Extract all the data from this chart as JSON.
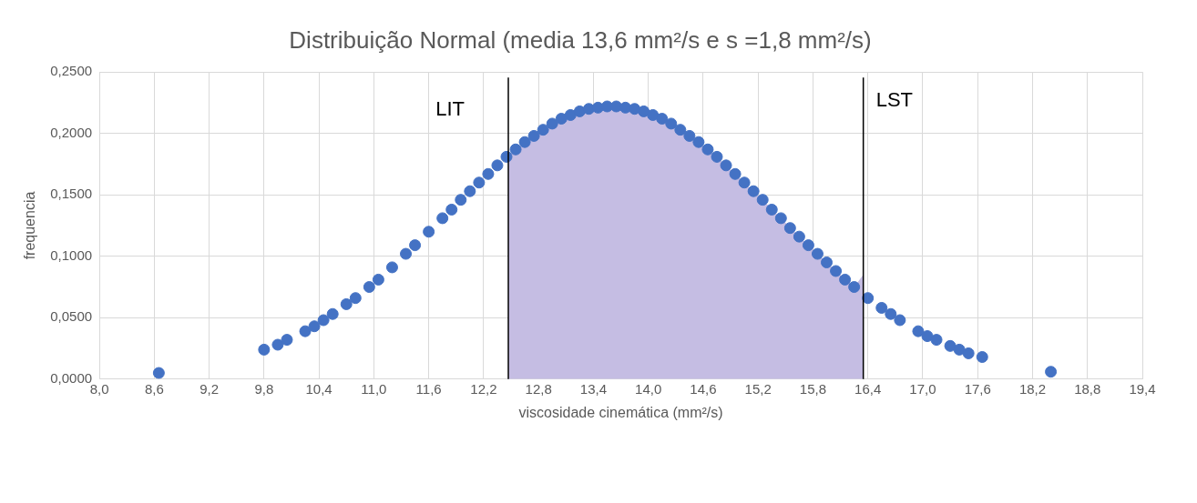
{
  "chart_data": {
    "type": "scatter",
    "title": "Distribuição Normal (media 13,6 mm²/s e s =1,8 mm²/s)",
    "xlabel": "viscosidade cinemática (mm²/s)",
    "ylabel": "frequencia",
    "xlim": [
      8.0,
      19.4
    ],
    "xticks": [
      {
        "value": 8.0,
        "label": "8,0"
      },
      {
        "value": 8.6,
        "label": "8,6"
      },
      {
        "value": 9.2,
        "label": "9,2"
      },
      {
        "value": 9.8,
        "label": "9,8"
      },
      {
        "value": 10.4,
        "label": "10,4"
      },
      {
        "value": 11.0,
        "label": "11,0"
      },
      {
        "value": 11.6,
        "label": "11,6"
      },
      {
        "value": 12.2,
        "label": "12,2"
      },
      {
        "value": 12.8,
        "label": "12,8"
      },
      {
        "value": 13.4,
        "label": "13,4"
      },
      {
        "value": 14.0,
        "label": "14,0"
      },
      {
        "value": 14.6,
        "label": "14,6"
      },
      {
        "value": 15.2,
        "label": "15,2"
      },
      {
        "value": 15.8,
        "label": "15,8"
      },
      {
        "value": 16.4,
        "label": "16,4"
      },
      {
        "value": 17.0,
        "label": "17,0"
      },
      {
        "value": 17.6,
        "label": "17,6"
      },
      {
        "value": 18.2,
        "label": "18,2"
      },
      {
        "value": 18.8,
        "label": "18,8"
      },
      {
        "value": 19.4,
        "label": "19,4"
      }
    ],
    "ylim": [
      0,
      0.25
    ],
    "yticks": [
      {
        "value": 0,
        "label": "0,0000"
      },
      {
        "value": 0.05,
        "label": "0,0500"
      },
      {
        "value": 0.1,
        "label": "0,1000"
      },
      {
        "value": 0.15,
        "label": "0,1500"
      },
      {
        "value": 0.2,
        "label": "0,2000"
      },
      {
        "value": 0.25,
        "label": "0,2500"
      }
    ],
    "grid": true,
    "legend": false,
    "marker": "circle",
    "series": [
      {
        "type": "area",
        "marker": "none",
        "color": "#c5bde3",
        "x": [
          12.47,
          12.65,
          12.85,
          13.05,
          13.25,
          13.45,
          13.65,
          13.85,
          14.05,
          14.25,
          14.45,
          14.65,
          14.85,
          15.05,
          15.25,
          15.45,
          15.65,
          15.85,
          16.05,
          16.25,
          16.35
        ],
        "values": [
          0.182,
          0.193,
          0.203,
          0.212,
          0.218,
          0.221,
          0.222,
          0.22,
          0.215,
          0.208,
          0.198,
          0.187,
          0.174,
          0.16,
          0.146,
          0.131,
          0.116,
          0.102,
          0.088,
          0.075,
          0.085
        ]
      },
      {
        "color": "#4472c4",
        "x": [
          8.65,
          9.8,
          9.95,
          10.05,
          10.25,
          10.35,
          10.45,
          10.55,
          10.7,
          10.8,
          10.95,
          11.05,
          11.2,
          11.35,
          11.45,
          11.6,
          11.75,
          11.85,
          11.95,
          12.05,
          12.15,
          12.25,
          12.35,
          12.45,
          12.55,
          12.65,
          12.75,
          12.85,
          12.95,
          13.05,
          13.15,
          13.25,
          13.35,
          13.45,
          13.55,
          13.65,
          13.75,
          13.85,
          13.95,
          14.05,
          14.15,
          14.25,
          14.35,
          14.45,
          14.55,
          14.65,
          14.75,
          14.85,
          14.95,
          15.05,
          15.15,
          15.25,
          15.35,
          15.45,
          15.55,
          15.65,
          15.75,
          15.85,
          15.95,
          16.05,
          16.15,
          16.25,
          16.4,
          16.55,
          16.65,
          16.75,
          16.95,
          17.05,
          17.15,
          17.3,
          17.4,
          17.5,
          17.65,
          18.4
        ],
        "values": [
          0.005,
          0.024,
          0.028,
          0.032,
          0.039,
          0.043,
          0.048,
          0.053,
          0.061,
          0.066,
          0.075,
          0.081,
          0.091,
          0.102,
          0.109,
          0.12,
          0.131,
          0.138,
          0.146,
          0.153,
          0.16,
          0.167,
          0.174,
          0.181,
          0.187,
          0.193,
          0.198,
          0.203,
          0.208,
          0.212,
          0.215,
          0.218,
          0.22,
          0.221,
          0.222,
          0.222,
          0.221,
          0.22,
          0.218,
          0.215,
          0.212,
          0.208,
          0.203,
          0.198,
          0.193,
          0.187,
          0.181,
          0.174,
          0.167,
          0.16,
          0.153,
          0.146,
          0.138,
          0.131,
          0.123,
          0.116,
          0.109,
          0.102,
          0.095,
          0.088,
          0.081,
          0.075,
          0.066,
          0.058,
          0.053,
          0.048,
          0.039,
          0.035,
          0.032,
          0.027,
          0.024,
          0.021,
          0.018,
          0.006
        ]
      }
    ],
    "ref_lines": [
      {
        "axis": "x",
        "value": 12.47,
        "label": "LIT",
        "color": "#000000"
      },
      {
        "axis": "x",
        "value": 16.35,
        "label": "LST",
        "color": "#000000"
      }
    ]
  }
}
